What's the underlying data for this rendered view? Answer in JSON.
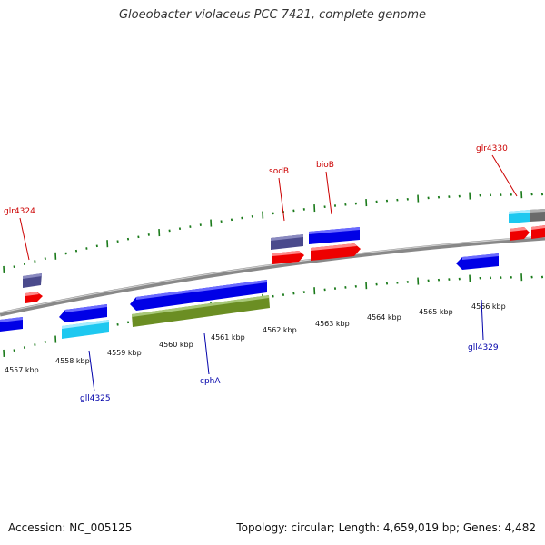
{
  "title": "Gloeobacter violaceus PCC 7421, complete genome",
  "footer": {
    "accession": "Accession: NC_005125",
    "topology": "Topology: circular; Length: 4,659,019 bp; Genes: 4,482"
  },
  "ticks": [
    "4557 kbp",
    "4558 kbp",
    "4559 kbp",
    "4560 kbp",
    "4561 kbp",
    "4562 kbp",
    "4563 kbp",
    "4564 kbp",
    "4565 kbp",
    "4566 kbp"
  ],
  "gene_labels": {
    "glr4324": "glr4324",
    "sodB": "sodB",
    "bioB": "bioB",
    "glr4330": "glr4330",
    "gll4325": "gll4325",
    "cphA": "cphA",
    "gll4329": "gll4329"
  },
  "colors": {
    "plus_label": "#cc0000",
    "minus_label": "#0000aa",
    "cds_blue": "#0000e6",
    "cds_red": "#ee0000",
    "cds_cyan": "#1ec8f0",
    "cds_purple": "#4a4a8c",
    "cds_olive": "#6b8e23",
    "tick_green": "#1a7a1a",
    "backbone": "#888888"
  }
}
